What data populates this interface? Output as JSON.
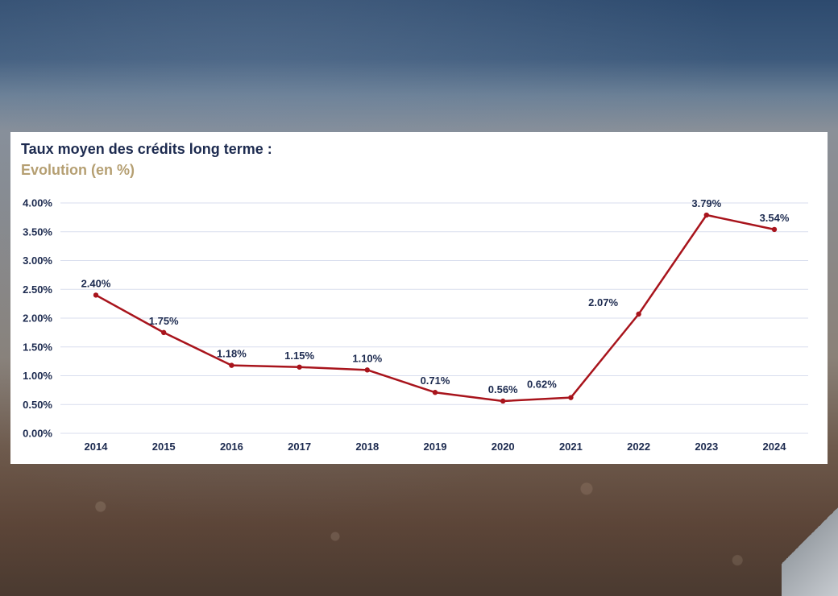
{
  "chart_data": {
    "type": "line",
    "title": "Taux moyen des crédits long terme :",
    "subtitle": "Evolution (en %)",
    "xlabel": "",
    "ylabel": "",
    "categories": [
      "2014",
      "2015",
      "2016",
      "2017",
      "2018",
      "2019",
      "2020",
      "2021",
      "2022",
      "2023",
      "2024"
    ],
    "series": [
      {
        "values": [
          2.4,
          1.75,
          1.18,
          1.15,
          1.1,
          0.71,
          0.56,
          0.62,
          2.07,
          3.79,
          3.54
        ],
        "labels": [
          "2.40%",
          "1.75%",
          "1.18%",
          "1.15%",
          "1.10%",
          "0.71%",
          "0.56%",
          "0.62%",
          "2.07%",
          "3.79%",
          "3.54%"
        ]
      }
    ],
    "ylim": [
      0,
      4
    ],
    "yticks": [
      "0.00%",
      "0.50%",
      "1.00%",
      "1.50%",
      "2.00%",
      "2.50%",
      "3.00%",
      "3.50%",
      "4.00%"
    ],
    "grid": true,
    "legend": "none",
    "line_color": "#a8141c",
    "grid_color": "#d9deee",
    "text_color": "#1c2a4f",
    "subtitle_color": "#b59f72"
  }
}
